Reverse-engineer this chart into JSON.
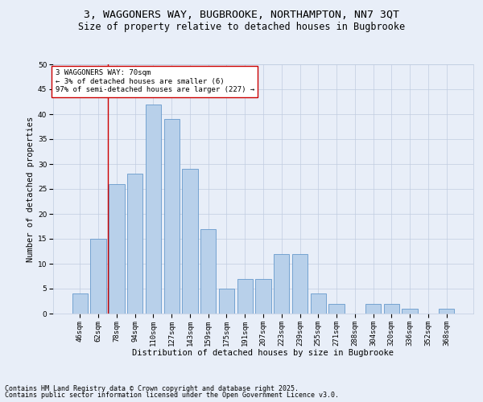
{
  "title_line1": "3, WAGGONERS WAY, BUGBROOKE, NORTHAMPTON, NN7 3QT",
  "title_line2": "Size of property relative to detached houses in Bugbrooke",
  "xlabel": "Distribution of detached houses by size in Bugbrooke",
  "ylabel": "Number of detached properties",
  "categories": [
    "46sqm",
    "62sqm",
    "78sqm",
    "94sqm",
    "110sqm",
    "127sqm",
    "143sqm",
    "159sqm",
    "175sqm",
    "191sqm",
    "207sqm",
    "223sqm",
    "239sqm",
    "255sqm",
    "271sqm",
    "288sqm",
    "304sqm",
    "320sqm",
    "336sqm",
    "352sqm",
    "368sqm"
  ],
  "values": [
    4,
    15,
    26,
    28,
    42,
    39,
    29,
    17,
    5,
    7,
    7,
    12,
    12,
    4,
    2,
    0,
    2,
    2,
    1,
    0,
    1
  ],
  "bar_color": "#b8d0ea",
  "bar_edge_color": "#6699cc",
  "ylim": [
    0,
    50
  ],
  "yticks": [
    0,
    5,
    10,
    15,
    20,
    25,
    30,
    35,
    40,
    45,
    50
  ],
  "vline_x_idx": 1.5,
  "annotation_text": "3 WAGGONERS WAY: 70sqm\n← 3% of detached houses are smaller (6)\n97% of semi-detached houses are larger (227) →",
  "annotation_box_color": "#ffffff",
  "annotation_box_edge_color": "#cc0000",
  "footer_line1": "Contains HM Land Registry data © Crown copyright and database right 2025.",
  "footer_line2": "Contains public sector information licensed under the Open Government Licence v3.0.",
  "bg_color": "#e8eef8",
  "plot_bg_color": "#e8eef8",
  "grid_color": "#c0cce0",
  "title_fontsize": 9.5,
  "subtitle_fontsize": 8.5,
  "tick_fontsize": 6.5,
  "label_fontsize": 7.5,
  "annotation_fontsize": 6.5,
  "footer_fontsize": 6,
  "vline_color": "#cc0000"
}
